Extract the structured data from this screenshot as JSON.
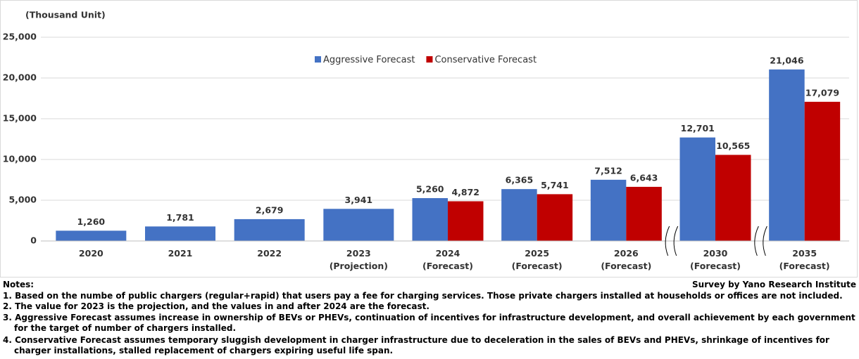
{
  "chart_data": {
    "type": "bar",
    "y_label": "(Thousand Unit)",
    "categories": [
      "2020",
      "2021",
      "2022",
      "2023\n(Projection)",
      "2024\n(Forecast)",
      "2025\n(Forecast)",
      "2026\n(Forecast)",
      "2030\n(Forecast)",
      "2035\n(Forecast)"
    ],
    "series": [
      {
        "name": "Aggressive Forecast",
        "color": "#4472c4",
        "values": [
          1260,
          1781,
          2679,
          3941,
          5260,
          6365,
          7512,
          12701,
          21046
        ],
        "value_labels": [
          "1,260",
          "1,781",
          "2,679",
          "3,941",
          "5,260",
          "6,365",
          "7,512",
          "12,701",
          "21,046"
        ]
      },
      {
        "name": "Conservative Forecast",
        "color": "#c00000",
        "values": [
          null,
          null,
          null,
          null,
          4872,
          5741,
          6643,
          10565,
          17079
        ],
        "value_labels": [
          null,
          null,
          null,
          null,
          "4,872",
          "5,741",
          "6,643",
          "10,565",
          "17,079"
        ]
      }
    ],
    "ylim": [
      0,
      25000
    ],
    "yticks": [
      0,
      {
        "value": 5000,
        "label": "5,000"
      },
      {
        "value": 10000,
        "label": "10,000"
      },
      {
        "value": 15000,
        "label": "15,000"
      },
      {
        "value": 20000,
        "label": "20,000"
      },
      {
        "value": 25000,
        "label": "25,000"
      }
    ],
    "grid": true
  },
  "notes": {
    "title": "Notes:",
    "items": [
      "1. Based on the numbe of public chargers (regular+rapid) that users pay a fee for charging services. Those private chargers installed at households or offices are not included.",
      "2. The value for 2023 is the projection, and the values in and after 2024 are the forecast.",
      "3. Aggressive Forecast assumes increase in ownership of BEVs or PHEVs, continuation of incentives for infrastructure development, and overall achievement by each government for the target of number of chargers installed.",
      "4. Conservative Forecast assumes temporary sluggish development in charger infrastructure due to deceleration in the sales of BEVs and PHEVs, shrinkage of incentives for charger installations, stalled replacement of chargers expiring useful life span."
    ]
  },
  "source": "Survey by Yano Research Institute"
}
